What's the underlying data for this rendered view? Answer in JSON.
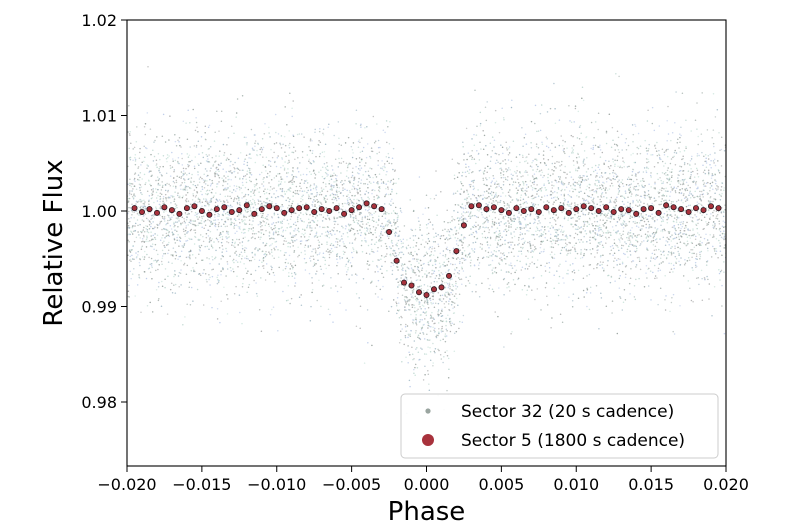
{
  "chart_data": {
    "type": "scatter",
    "title": "",
    "xlabel": "Phase",
    "ylabel": "Relative Flux",
    "xlim": [
      -0.02,
      0.02
    ],
    "ylim": [
      0.9733,
      1.02
    ],
    "x_ticks": [
      -0.02,
      -0.015,
      -0.01,
      -0.005,
      0.0,
      0.005,
      0.01,
      0.015,
      0.02
    ],
    "x_tick_labels": [
      "−0.020",
      "−0.015",
      "−0.010",
      "−0.005",
      "0.000",
      "0.005",
      "0.010",
      "0.015",
      "0.020"
    ],
    "y_ticks": [
      0.98,
      0.99,
      1.0,
      1.01,
      1.02
    ],
    "y_tick_labels": [
      "0.98",
      "0.99",
      "1.00",
      "1.01",
      "1.02"
    ],
    "grid": false,
    "legend_position": "lower-right",
    "transit": {
      "ingress_start": -0.0025,
      "full_start": -0.0015,
      "full_end": 0.0015,
      "egress_end": 0.0025,
      "depth": 0.0085
    },
    "series": [
      {
        "name": "Sector 32 (20 s cadence)",
        "color": "#9aa5a0",
        "marker": "small-dot",
        "scatter_sigma": 0.0042,
        "x": [
          -0.0195,
          -0.017,
          -0.0145,
          -0.012,
          -0.0095,
          -0.007,
          -0.0045,
          -0.0025,
          -0.0015,
          -0.0005,
          0.0005,
          0.0015,
          0.0025,
          0.0045,
          0.007,
          0.0095,
          0.012,
          0.0145,
          0.017,
          0.0195
        ],
        "y": [
          1.0,
          1.0,
          1.0,
          1.0,
          1.0,
          1.0,
          1.0,
          1.0,
          0.9915,
          0.9915,
          0.9915,
          0.9915,
          1.0,
          1.0,
          1.0,
          1.0,
          1.0,
          1.0,
          1.0,
          1.0
        ]
      },
      {
        "name": "Sector 5 (1800 s cadence)",
        "color": "#a8323c",
        "marker": "large-dot",
        "x": [
          -0.0195,
          -0.019,
          -0.0185,
          -0.018,
          -0.0175,
          -0.017,
          -0.0165,
          -0.016,
          -0.0155,
          -0.015,
          -0.0145,
          -0.014,
          -0.0135,
          -0.013,
          -0.0125,
          -0.012,
          -0.0115,
          -0.011,
          -0.0105,
          -0.01,
          -0.0095,
          -0.009,
          -0.0085,
          -0.008,
          -0.0075,
          -0.007,
          -0.0065,
          -0.006,
          -0.0055,
          -0.005,
          -0.0045,
          -0.004,
          -0.0035,
          -0.003,
          -0.0025,
          -0.002,
          -0.0015,
          -0.001,
          -0.0005,
          0.0,
          0.0005,
          0.001,
          0.0015,
          0.002,
          0.0025,
          0.003,
          0.0035,
          0.004,
          0.0045,
          0.005,
          0.0055,
          0.006,
          0.0065,
          0.007,
          0.0075,
          0.008,
          0.0085,
          0.009,
          0.0095,
          0.01,
          0.0105,
          0.011,
          0.0115,
          0.012,
          0.0125,
          0.013,
          0.0135,
          0.014,
          0.0145,
          0.015,
          0.0155,
          0.016,
          0.0165,
          0.017,
          0.0175,
          0.018,
          0.0185,
          0.019,
          0.0195
        ],
        "y": [
          1.0003,
          0.9999,
          1.0002,
          0.9998,
          1.0004,
          1.0001,
          0.9997,
          1.0003,
          1.0005,
          1.0,
          0.9996,
          1.0002,
          1.0004,
          0.9999,
          1.0001,
          1.0006,
          0.9997,
          1.0002,
          1.0005,
          1.0003,
          0.9998,
          1.0001,
          1.0003,
          1.0004,
          0.9999,
          1.0002,
          1.0,
          1.0003,
          0.9997,
          1.0001,
          1.0004,
          1.0008,
          1.0005,
          1.0002,
          0.9978,
          0.9948,
          0.9925,
          0.9922,
          0.9915,
          0.9912,
          0.9918,
          0.992,
          0.9932,
          0.9958,
          0.9985,
          1.0005,
          1.0006,
          1.0002,
          1.0004,
          1.0001,
          0.9998,
          1.0003,
          1.0,
          1.0002,
          0.9999,
          1.0004,
          1.0001,
          1.0003,
          0.9998,
          1.0002,
          1.0005,
          1.0003,
          1.0,
          1.0004,
          0.9999,
          1.0002,
          1.0001,
          0.9997,
          1.0002,
          1.0003,
          0.9998,
          1.0006,
          1.0004,
          1.0002,
          0.9999,
          1.0003,
          1.0001,
          1.0005,
          1.0003
        ]
      }
    ]
  }
}
